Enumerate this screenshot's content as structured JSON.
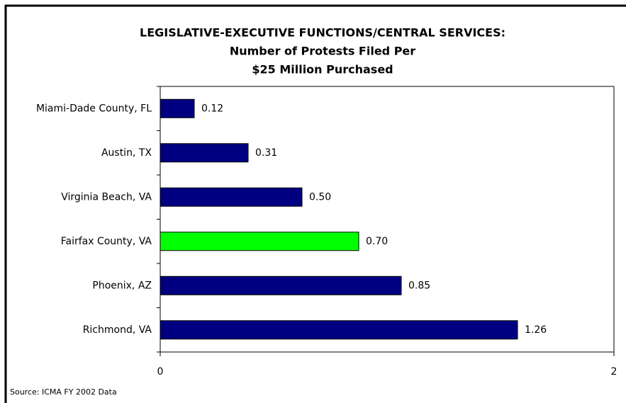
{
  "chart_data": {
    "type": "bar",
    "orientation": "horizontal",
    "title": [
      "LEGISLATIVE-EXECUTIVE FUNCTIONS/CENTRAL SERVICES:",
      "Number of Protests Filed Per",
      "$25 Million Purchased"
    ],
    "categories": [
      "Miami-Dade County, FL",
      "Austin, TX",
      "Virginia Beach, VA",
      "Fairfax County, VA",
      "Phoenix, AZ",
      "Richmond, VA"
    ],
    "values": [
      0.12,
      0.31,
      0.5,
      0.7,
      0.85,
      1.26
    ],
    "value_labels": [
      "0.12",
      "0.31",
      "0.50",
      "0.70",
      "0.85",
      "1.26"
    ],
    "colors": [
      "#000080",
      "#000080",
      "#000080",
      "#00ff00",
      "#000080",
      "#000080"
    ],
    "xlim": [
      0,
      1.6
    ],
    "xticks": [
      0,
      {
        "value": 1.6,
        "label": "2"
      }
    ],
    "source": "Source: ICMA FY 2002 Data"
  }
}
